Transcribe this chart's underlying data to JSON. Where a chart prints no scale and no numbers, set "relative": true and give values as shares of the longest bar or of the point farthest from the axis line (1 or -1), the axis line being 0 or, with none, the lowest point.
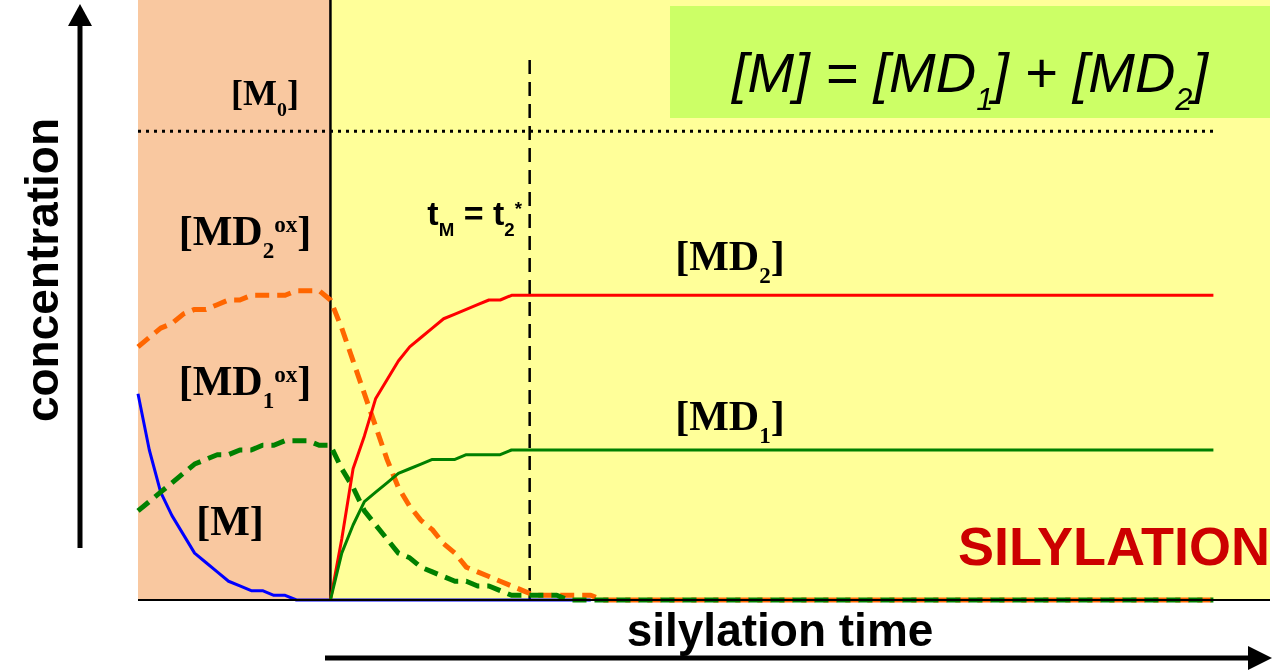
{
  "chart_data": {
    "type": "line",
    "relative": true,
    "xlabel": "silylation time",
    "ylabel": "concentration",
    "categories": [
      null,
      null,
      null,
      null,
      null,
      null,
      null,
      null,
      null,
      null,
      null,
      null,
      null,
      null,
      null,
      null,
      null,
      null,
      null,
      null,
      null,
      null,
      null,
      null,
      null,
      null,
      null,
      null,
      null,
      null,
      null,
      null,
      null,
      null,
      null,
      null,
      null,
      null,
      null,
      null,
      null,
      null,
      null,
      null,
      null,
      null,
      null,
      null,
      null,
      null,
      null,
      null,
      null,
      null,
      null,
      null,
      null,
      null,
      null,
      null,
      null,
      null,
      null,
      null,
      null,
      null,
      null,
      null,
      null,
      null,
      null,
      null,
      null,
      null,
      null,
      null,
      null,
      null,
      null,
      null,
      null,
      null,
      null,
      null,
      null,
      null,
      null,
      null,
      null,
      null,
      null,
      null,
      null,
      null,
      null,
      null,
      null,
      null,
      null,
      null,
      null
    ],
    "annotations": [
      "[M] = [MD$_{1}$] + [MD$_{2}$]",
      "SILYLATION",
      "t$_{M}$ = t$_{2}$$^{*}$"
    ],
    "series": [
      {
        "name": "[M]",
        "color": "#0000ff",
        "line_style": "solid",
        "values": [
          0.44,
          0.32,
          0.23,
          0.18,
          0.14,
          0.1,
          0.08,
          0.06,
          0.04,
          0.03,
          0.02,
          0.02,
          0.01,
          0.01,
          0,
          0,
          0,
          0,
          0,
          0,
          0,
          0,
          0,
          0,
          0,
          0,
          0,
          0,
          0,
          0,
          0,
          0,
          0,
          0,
          0,
          0,
          0,
          0,
          0,
          0,
          0,
          null,
          null,
          null,
          null,
          null,
          null,
          null,
          null,
          null,
          null,
          null,
          null,
          null,
          null,
          null,
          null,
          null,
          null,
          null,
          null,
          null,
          null,
          null,
          null,
          null,
          null,
          null,
          null,
          null,
          null,
          null,
          null,
          null,
          null,
          null,
          null,
          null,
          null,
          null,
          null,
          null,
          null,
          null,
          null,
          null,
          null,
          null,
          null,
          null,
          null,
          null,
          null,
          null,
          null,
          null,
          null,
          null,
          null,
          null,
          null
        ]
      },
      {
        "name": "[MD$_{2}$$^{ox}$]",
        "color": "#ff6600",
        "line_style": "dashed",
        "values": [
          0.54,
          0.56,
          0.58,
          0.59,
          0.61,
          0.62,
          0.62,
          0.63,
          0.64,
          0.64,
          0.65,
          0.65,
          0.65,
          0.65,
          0.66,
          0.66,
          0.66,
          0.64,
          0.58,
          0.51,
          0.44,
          0.37,
          0.3,
          0.24,
          0.2,
          0.17,
          0.15,
          0.12,
          0.1,
          0.07,
          0.06,
          0.05,
          0.04,
          0.03,
          0.02,
          0.01,
          0.01,
          0.01,
          0.01,
          0.01,
          0.01,
          0,
          0,
          0,
          0,
          0,
          0,
          0,
          0,
          0,
          0,
          0,
          0,
          0,
          0,
          0,
          0,
          0,
          0,
          0,
          0,
          0,
          0,
          0,
          0,
          0,
          0,
          0,
          0,
          0,
          0,
          0,
          0,
          0,
          0,
          0,
          0,
          0,
          0,
          0,
          0,
          0,
          0,
          0,
          0,
          0,
          0,
          0,
          0,
          0,
          0,
          0,
          0,
          0,
          0,
          0,
          null,
          null,
          null,
          null,
          null
        ]
      },
      {
        "name": "[MD$_{1}$$^{ox}$]",
        "color": "#008000",
        "line_style": "dashed",
        "values": [
          0.19,
          0.21,
          0.23,
          0.25,
          0.27,
          0.29,
          0.3,
          0.31,
          0.31,
          0.32,
          0.32,
          0.33,
          0.33,
          0.34,
          0.34,
          0.34,
          0.33,
          0.33,
          0.28,
          0.24,
          0.19,
          0.16,
          0.13,
          0.1,
          0.09,
          0.07,
          0.06,
          0.05,
          0.04,
          0.04,
          0.03,
          0.03,
          0.02,
          0.01,
          0.01,
          0.01,
          0.01,
          0.01,
          0,
          0,
          0,
          0,
          0,
          0,
          0,
          0,
          0,
          0,
          0,
          0,
          0,
          0,
          0,
          0,
          0,
          0,
          0,
          0,
          0,
          0,
          0,
          0,
          0,
          0,
          0,
          0,
          0,
          0,
          0,
          0,
          0,
          0,
          0,
          0,
          0,
          0,
          0,
          0,
          0,
          0,
          0,
          0,
          0,
          0,
          0,
          0,
          0,
          0,
          0,
          0,
          0,
          0,
          0,
          0,
          0,
          0,
          null,
          null,
          null,
          null,
          null
        ]
      },
      {
        "name": "[MD$_{2}$]",
        "color": "#ff0000",
        "line_style": "solid",
        "values": [
          null,
          null,
          null,
          null,
          null,
          null,
          null,
          null,
          null,
          null,
          null,
          null,
          null,
          null,
          null,
          null,
          null,
          0,
          0.13,
          0.28,
          0.35,
          0.43,
          0.47,
          0.51,
          0.54,
          0.56,
          0.58,
          0.6,
          0.61,
          0.62,
          0.63,
          0.64,
          0.64,
          0.65,
          0.65,
          0.65,
          0.65,
          0.65,
          0.65,
          0.65,
          0.65,
          0.65,
          0.65,
          0.65,
          0.65,
          0.65,
          0.65,
          0.65,
          0.65,
          0.65,
          0.65,
          0.65,
          0.65,
          0.65,
          0.65,
          0.65,
          0.65,
          0.65,
          0.65,
          0.65,
          0.65,
          0.65,
          0.65,
          0.65,
          0.65,
          0.65,
          0.65,
          0.65,
          0.65,
          0.65,
          0.65,
          0.65,
          0.65,
          0.65,
          0.65,
          0.65,
          0.65,
          0.65,
          0.65,
          0.65,
          0.65,
          0.65,
          0.65,
          0.65,
          0.65,
          0.65,
          0.65,
          0.65,
          0.65,
          0.65,
          0.65,
          0.65,
          0.65,
          0.65,
          0.65,
          0.65,
          null,
          null,
          null,
          null,
          null
        ]
      },
      {
        "name": "[MD$_{1}$]",
        "color": "#008000",
        "line_style": "solid",
        "values": [
          null,
          null,
          null,
          null,
          null,
          null,
          null,
          null,
          null,
          null,
          null,
          null,
          null,
          null,
          null,
          null,
          null,
          0,
          0.1,
          0.16,
          0.21,
          0.23,
          0.25,
          0.27,
          0.28,
          0.29,
          0.3,
          0.3,
          0.3,
          0.31,
          0.31,
          0.31,
          0.31,
          0.32,
          0.32,
          0.32,
          0.32,
          0.32,
          0.32,
          0.32,
          0.32,
          0.32,
          0.32,
          0.32,
          0.32,
          0.32,
          0.32,
          0.32,
          0.32,
          0.32,
          0.32,
          0.32,
          0.32,
          0.32,
          0.32,
          0.32,
          0.32,
          0.32,
          0.32,
          0.32,
          0.32,
          0.32,
          0.32,
          0.32,
          0.32,
          0.32,
          0.32,
          0.32,
          0.32,
          0.32,
          0.32,
          0.32,
          0.32,
          0.32,
          0.32,
          0.32,
          0.32,
          0.32,
          0.32,
          0.32,
          0.32,
          0.32,
          0.32,
          0.32,
          0.32,
          0.32,
          0.32,
          0.32,
          0.32,
          0.32,
          0.32,
          0.32,
          0.32,
          0.32,
          0.32,
          0.32,
          null,
          null,
          null,
          null,
          null
        ]
      },
      {
        "name": "[M$_{0}$]",
        "color": "#000000",
        "line_style": "dotted",
        "values": [
          1,
          1,
          1,
          1,
          1,
          1,
          1,
          1,
          1,
          1,
          1,
          1,
          1,
          1,
          1,
          1,
          1,
          1,
          1,
          1,
          1,
          1,
          1,
          1,
          1,
          1,
          1,
          1,
          1,
          1,
          1,
          1,
          1,
          1,
          1,
          1,
          1,
          1,
          1,
          1,
          1,
          1,
          1,
          1,
          1,
          1,
          1,
          1,
          1,
          1,
          1,
          1,
          1,
          1,
          1,
          1,
          1,
          1,
          1,
          1,
          1,
          1,
          1,
          1,
          1,
          1,
          1,
          1,
          1,
          1,
          1,
          1,
          1,
          1,
          1,
          1,
          1,
          1,
          1,
          1,
          1,
          1,
          1,
          1,
          1,
          1,
          1,
          1,
          1,
          1,
          1,
          1,
          1,
          1,
          1,
          1,
          null,
          null,
          null,
          null,
          null
        ]
      }
    ]
  }
}
